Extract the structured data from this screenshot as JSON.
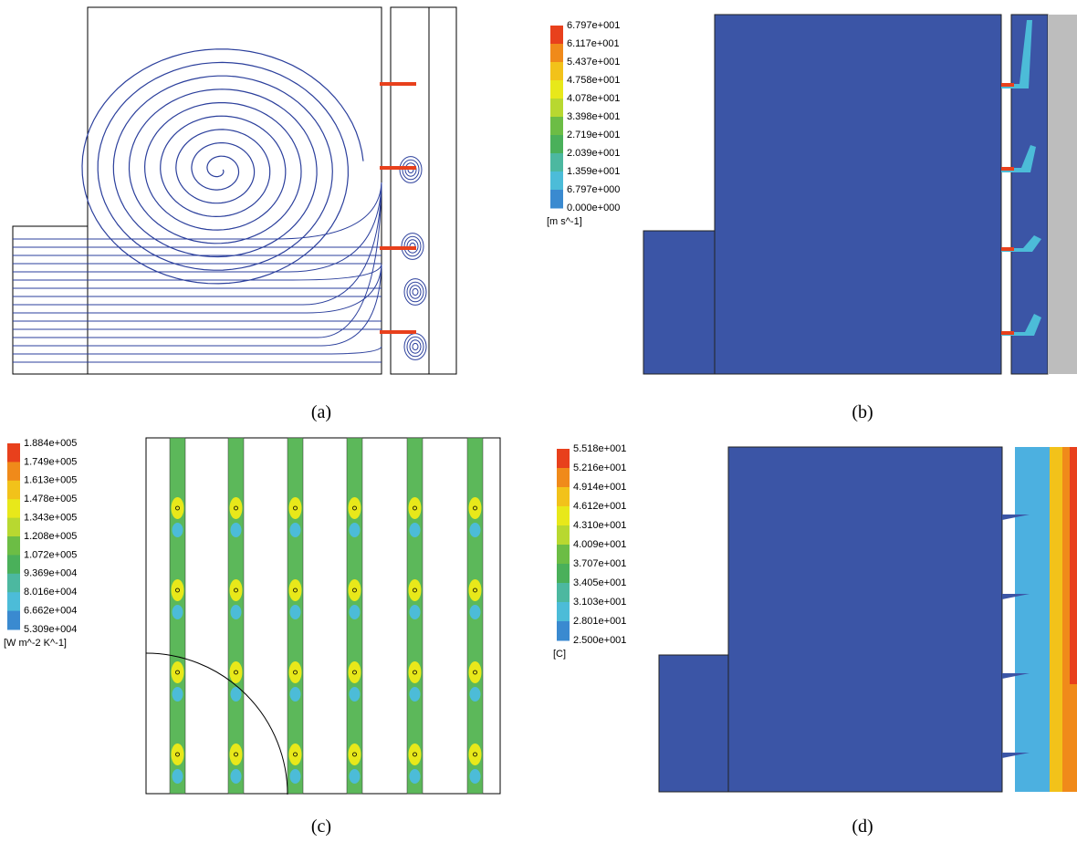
{
  "panels": [
    {
      "label": "(a)"
    },
    {
      "label": "(b)",
      "legend": {
        "ticks": [
          "6.797e+001",
          "6.117e+001",
          "5.437e+001",
          "4.758e+001",
          "4.078e+001",
          "3.398e+001",
          "2.719e+001",
          "2.039e+001",
          "1.359e+001",
          "6.797e+000",
          "0.000e+000"
        ],
        "unit": "[m s^-1]"
      }
    },
    {
      "label": "(c)",
      "legend": {
        "ticks": [
          "1.884e+005",
          "1.749e+005",
          "1.613e+005",
          "1.478e+005",
          "1.343e+005",
          "1.208e+005",
          "1.072e+005",
          "9.369e+004",
          "8.016e+004",
          "6.662e+004",
          "5.309e+004"
        ],
        "unit": "[W m^-2 K^-1]"
      }
    },
    {
      "label": "(d)",
      "legend": {
        "ticks": [
          "5.518e+001",
          "5.216e+001",
          "4.914e+001",
          "4.612e+001",
          "4.310e+001",
          "4.009e+001",
          "3.707e+001",
          "3.405e+001",
          "3.103e+001",
          "2.801e+001",
          "2.500e+001"
        ],
        "unit": "[C]"
      }
    }
  ]
}
